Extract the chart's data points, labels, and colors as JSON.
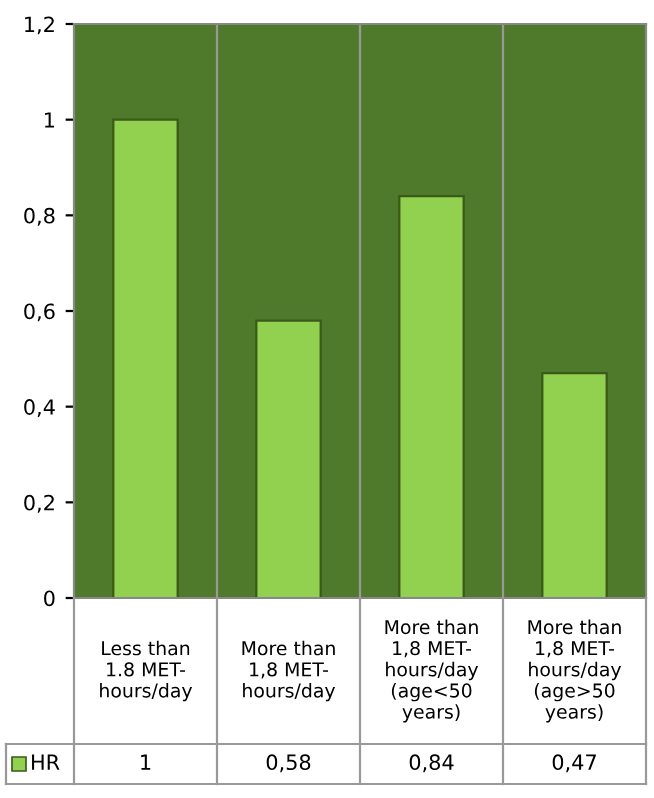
{
  "chart_data": {
    "type": "bar",
    "categories": [
      "Less than 1.8 MET-hours/day",
      "More than 1,8 MET-hours/day",
      "More than 1,8 MET-hours/day (age<50 years)",
      "More than 1,8 MET-hours/day (age>50 years)"
    ],
    "series": [
      {
        "name": "HR",
        "color": "#92d050",
        "values": [
          1,
          0.58,
          0.84,
          0.47
        ],
        "value_labels": [
          "1",
          "0,58",
          "0,84",
          "0,47"
        ]
      }
    ],
    "ylim": [
      0,
      1.2
    ],
    "yticks": [
      0,
      {
        "value": 0.2,
        "label": "0,2"
      },
      {
        "value": 0.4,
        "label": "0,4"
      },
      {
        "value": 0.6,
        "label": "0,6"
      },
      {
        "value": 0.8,
        "label": "0,8"
      },
      1,
      {
        "value": 1.2,
        "label": "1,2"
      }
    ],
    "grid": false,
    "legend": "bottom left"
  }
}
